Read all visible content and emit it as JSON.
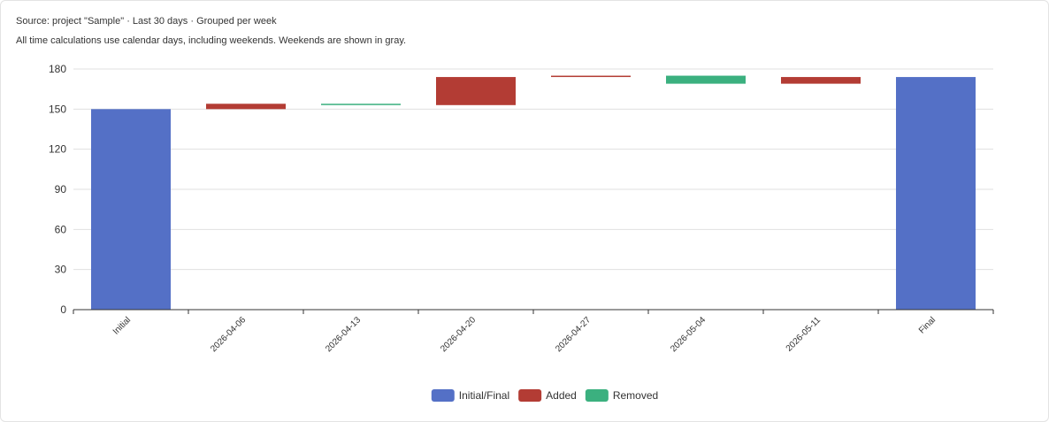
{
  "header": {
    "source_line": "Source: project \"Sample\" · Last 30 days · Grouped per week",
    "note_line": "All time calculations use calendar days, including weekends. Weekends are shown in gray."
  },
  "colors": {
    "initial_final": "#5470c6",
    "added": "#b33c34",
    "removed": "#3bb07f",
    "grid": "#e0e0e0",
    "axis": "#333333"
  },
  "chart_data": {
    "type": "bar",
    "subtype": "waterfall",
    "title": "",
    "xlabel": "",
    "ylabel": "",
    "ylim": [
      0,
      180
    ],
    "yticks": [
      0,
      30,
      60,
      90,
      120,
      150,
      180
    ],
    "grid": true,
    "legend_position": "bottom-center",
    "categories": [
      "Initial",
      "2026-04-06",
      "2026-04-13",
      "2026-04-20",
      "2026-04-27",
      "2026-05-04",
      "2026-05-11",
      "Final"
    ],
    "bars": [
      {
        "category": "Initial",
        "kind": "initial_final",
        "start": 0,
        "end": 150
      },
      {
        "category": "2026-04-06",
        "kind": "added",
        "start": 150,
        "end": 154
      },
      {
        "category": "2026-04-13",
        "kind": "removed",
        "start": 154,
        "end": 153
      },
      {
        "category": "2026-04-20",
        "kind": "added",
        "start": 153,
        "end": 174
      },
      {
        "category": "2026-04-27",
        "kind": "added",
        "start": 174,
        "end": 175
      },
      {
        "category": "2026-05-04",
        "kind": "removed",
        "start": 175,
        "end": 169
      },
      {
        "category": "2026-05-11",
        "kind": "added",
        "start": 169,
        "end": 174
      },
      {
        "category": "Final",
        "kind": "initial_final",
        "start": 0,
        "end": 174
      }
    ],
    "legend": [
      {
        "kind": "initial_final",
        "label": "Initial/Final"
      },
      {
        "kind": "added",
        "label": "Added"
      },
      {
        "kind": "removed",
        "label": "Removed"
      }
    ]
  }
}
